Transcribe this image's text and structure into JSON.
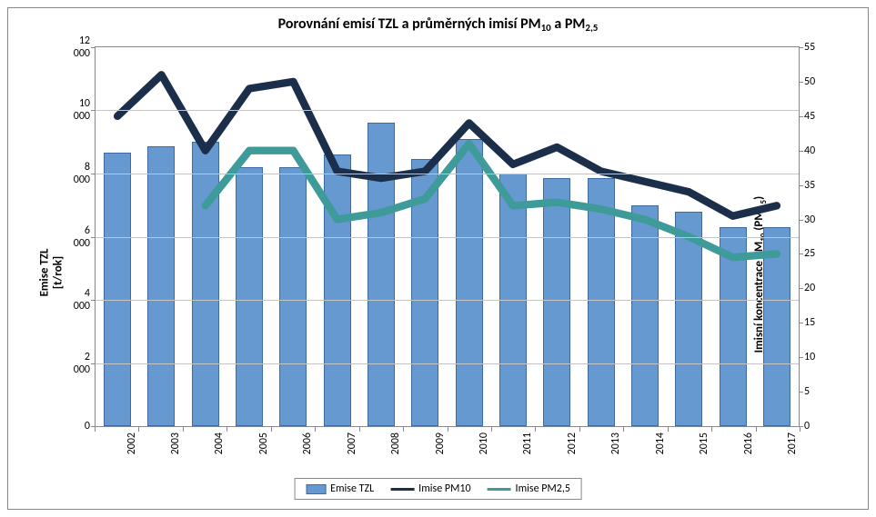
{
  "chart": {
    "type": "combo-bar-line-dual-axis",
    "title_parts": [
      "Porovnání emisí TZL a průměrných imisí PM",
      "10",
      " a PM",
      "2,5"
    ],
    "title_fontsize": 16,
    "title_fontweight": "bold",
    "background_color": "#ffffff",
    "grid_color": "#c4c4c4",
    "border_color": "#888888",
    "tick_fontsize": 12,
    "x": {
      "categories": [
        "2002",
        "2003",
        "2004",
        "2005",
        "2006",
        "2007",
        "2008",
        "2009",
        "2010",
        "2011",
        "2012",
        "2013",
        "2014",
        "2015",
        "2016",
        "2017"
      ],
      "label_rotation": -90
    },
    "y_left": {
      "title": "Emise TZL\n[t/rok]",
      "min": 0,
      "max": 12000,
      "step": 2000,
      "ticks": [
        "0",
        "2 000",
        "4 000",
        "6 000",
        "8 000",
        "10 000",
        "12 000"
      ],
      "fontsize": 13
    },
    "y_right": {
      "title_parts": [
        "Imisní koncentrace PM",
        "10",
        " (PM",
        "2,5",
        ")\n[",
        "µ",
        "g/m",
        "3",
        "]"
      ],
      "min": 0,
      "max": 55,
      "step": 5,
      "ticks": [
        "0",
        "5",
        "10",
        "15",
        "20",
        "25",
        "30",
        "35",
        "40",
        "45",
        "50",
        "55"
      ],
      "fontsize": 13
    },
    "bars": {
      "name": "Emise TZL",
      "values": [
        8650,
        8850,
        9000,
        8200,
        8200,
        8600,
        9600,
        8450,
        9100,
        8000,
        7850,
        7850,
        7000,
        6800,
        6300,
        6300
      ],
      "fill_color": "#6699d0",
      "border_color": "#3d6aa3",
      "bar_width_fraction": 0.62
    },
    "line1": {
      "name": "Imise PM10",
      "values": [
        45,
        51,
        40,
        49,
        50,
        37,
        36,
        37,
        44,
        38,
        40.5,
        37,
        35.5,
        34,
        30.5,
        32
      ],
      "color": "#1b2f4a",
      "width": 3.5
    },
    "line2": {
      "name": "Imise PM2,5",
      "values_partial": {
        "start_index": 2,
        "values": [
          32,
          40,
          40,
          30,
          31,
          33,
          41,
          32,
          32.5,
          31.5,
          30,
          27.5,
          24.5,
          25
        ]
      },
      "color": "#3f9a9a",
      "width": 3.5
    },
    "legend": {
      "items": [
        {
          "kind": "bar",
          "label": "Emise TZL",
          "fill": "#6699d0",
          "border": "#3d6aa3"
        },
        {
          "kind": "line",
          "label": "Imise PM10",
          "color": "#1b2f4a"
        },
        {
          "kind": "line",
          "label": "Imise PM2,5",
          "color": "#3f9a9a"
        }
      ],
      "fontsize": 12
    }
  }
}
